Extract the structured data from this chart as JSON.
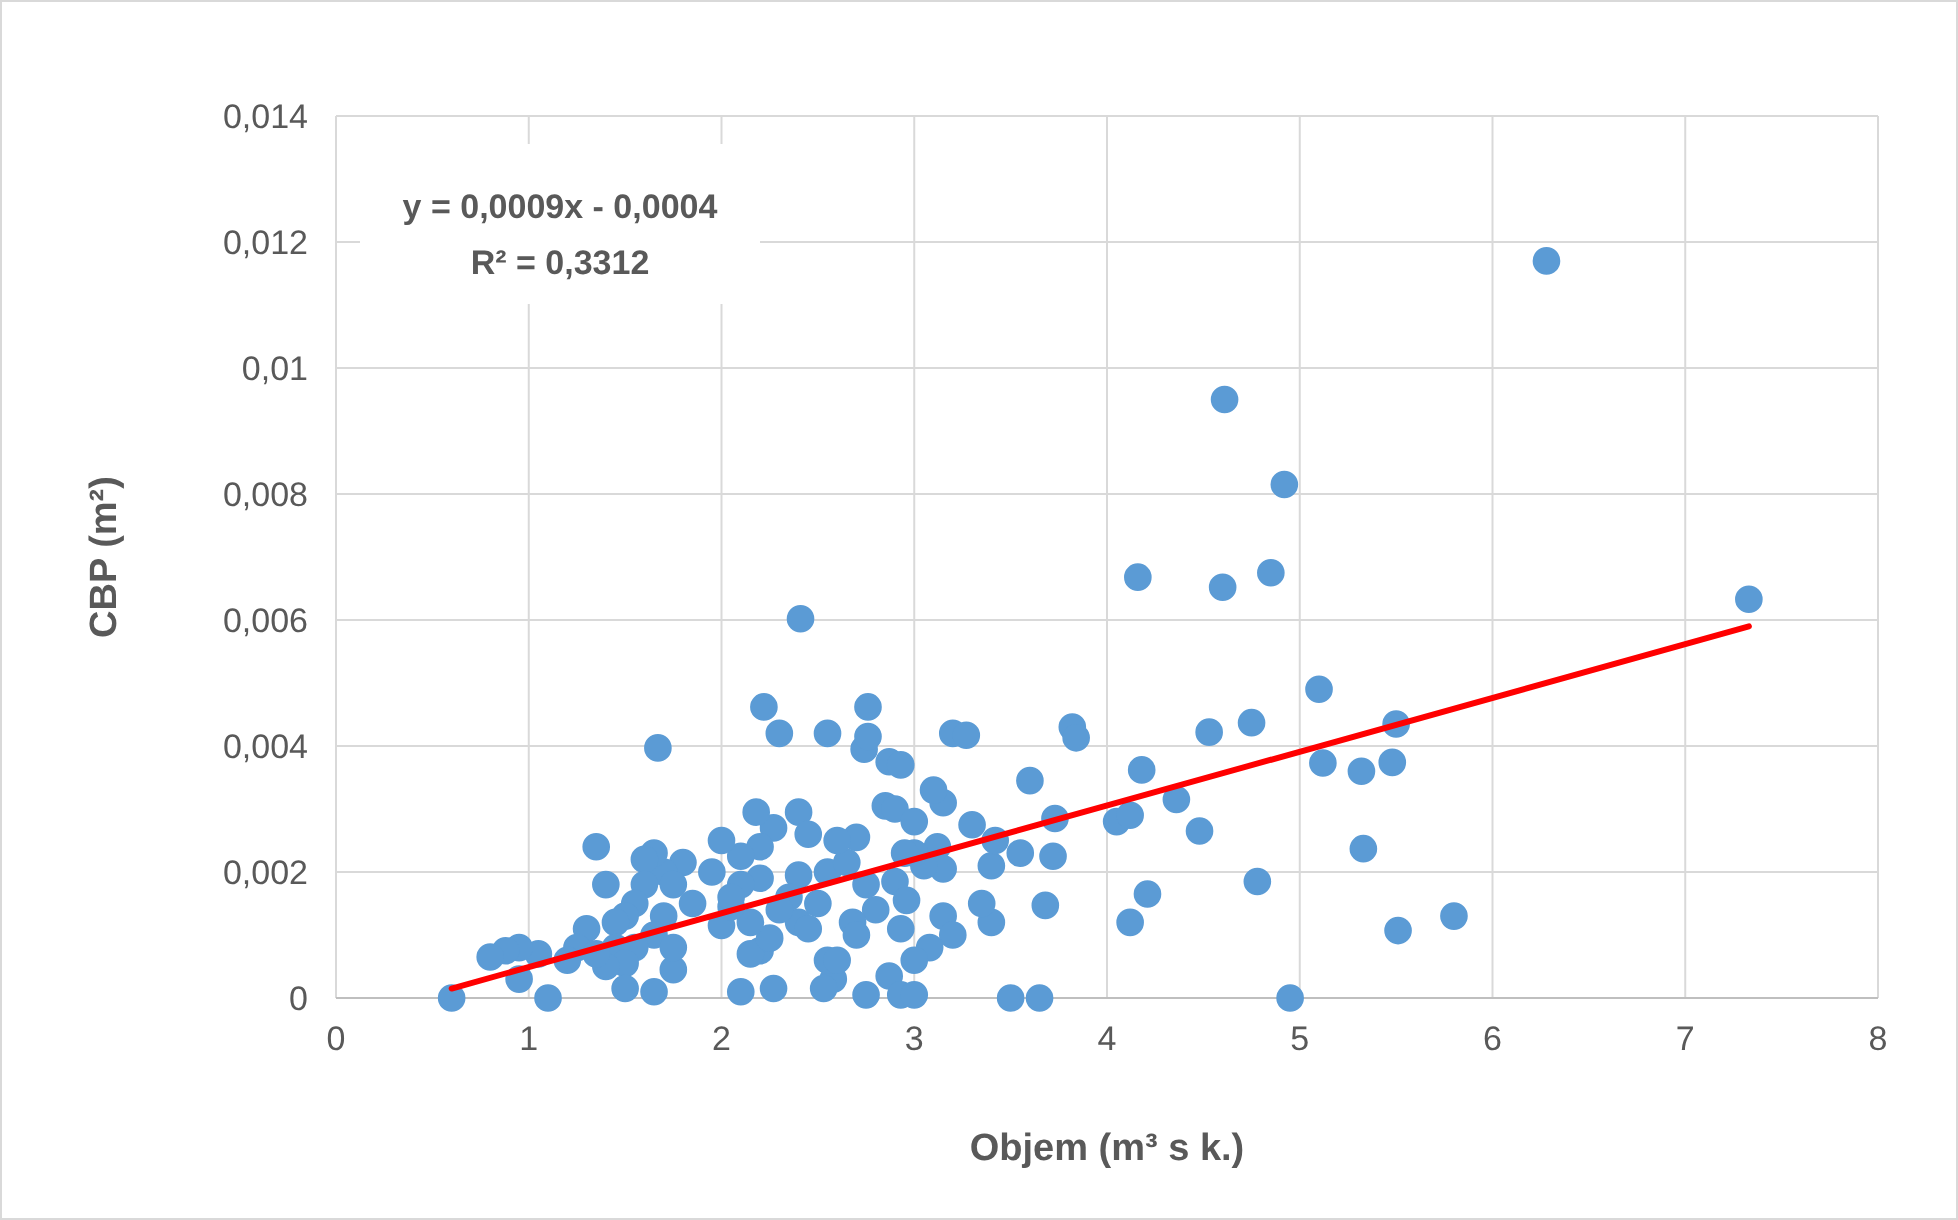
{
  "chart_data": {
    "type": "scatter",
    "xlabel": "Objem (m³ s k.)",
    "ylabel": "CBP (m²)",
    "annotations": [
      "y = 0,0009x - 0,0004",
      "R² = 0,3312"
    ],
    "xlim": [
      0,
      8
    ],
    "xticks": [
      0,
      1,
      2,
      3,
      4,
      5,
      6,
      7,
      8
    ],
    "ylim": [
      0,
      0.014
    ],
    "yticks": [
      0,
      {
        "value": 0.002,
        "label": "0,002"
      },
      {
        "value": 0.004,
        "label": "0,004"
      },
      {
        "value": 0.006,
        "label": "0,006"
      },
      {
        "value": 0.008,
        "label": "0,008"
      },
      {
        "value": 0.01,
        "label": "0,01"
      },
      {
        "value": 0.012,
        "label": "0,012"
      },
      {
        "value": 0.014,
        "label": "0,014"
      }
    ],
    "grid": true,
    "marker": "circle",
    "series": [
      {
        "color": "#5b9bd5",
        "x": [
          6.28,
          4.61,
          4.92,
          4.16,
          4.6,
          4.85,
          7.33,
          2.41,
          1.67,
          5.1,
          5.5,
          4.75,
          4.53,
          3.82,
          3.84,
          4.18,
          5.12,
          5.32,
          5.48,
          4.36,
          4.48,
          4.05,
          4.12,
          5.33,
          4.78,
          4.21,
          4.12,
          5.51,
          5.8,
          4.95,
          3.65,
          3.5,
          3.73,
          3.6,
          3.72,
          3.68,
          3.55,
          3.4,
          3.4,
          3.42,
          3.3,
          3.2,
          3.27,
          3.15,
          3.1,
          2.76,
          2.22,
          2.3,
          2.55,
          2.74,
          2.76,
          2.87,
          2.93,
          2.85,
          2.9,
          3.0,
          3.12,
          3.15,
          3.05,
          3.0,
          2.95,
          2.9,
          2.96,
          2.93,
          3.15,
          3.2,
          3.08,
          3.0,
          2.87,
          2.93,
          3.0,
          2.75,
          2.58,
          2.55,
          2.6,
          2.53,
          2.27,
          2.1,
          2.2,
          2.15,
          2.25,
          2.15,
          2.0,
          2.05,
          2.4,
          2.45,
          2.5,
          2.4,
          2.55,
          2.65,
          2.7,
          2.6,
          2.4,
          2.45,
          2.27,
          2.18,
          2.2,
          2.1,
          2.0,
          1.95,
          1.85,
          1.8,
          1.7,
          1.65,
          1.6,
          1.75,
          1.6,
          1.55,
          1.5,
          1.45,
          1.4,
          1.35,
          1.7,
          1.65,
          1.55,
          1.45,
          1.5,
          1.4,
          1.5,
          1.65,
          1.75,
          1.75,
          1.3,
          1.25,
          1.35,
          1.2,
          1.05,
          0.95,
          0.88,
          0.8,
          0.95,
          1.1,
          0.6,
          2.8,
          2.75,
          2.68,
          2.7,
          2.35,
          2.3,
          2.2,
          2.1,
          2.05,
          3.35
        ],
        "values": [
          0.0117,
          0.0095,
          0.00815,
          0.00668,
          0.00652,
          0.00675,
          0.00633,
          0.00602,
          0.00397,
          0.0049,
          0.00435,
          0.00437,
          0.00422,
          0.0043,
          0.00413,
          0.00362,
          0.00373,
          0.0036,
          0.00374,
          0.00315,
          0.00265,
          0.0028,
          0.0029,
          0.00237,
          0.00185,
          0.00165,
          0.0012,
          0.00107,
          0.0013,
          0.0,
          0.0,
          0.0,
          0.00285,
          0.00345,
          0.00225,
          0.00147,
          0.0023,
          0.0021,
          0.0012,
          0.0025,
          0.00275,
          0.0042,
          0.00417,
          0.0031,
          0.0033,
          0.00462,
          0.00462,
          0.0042,
          0.0042,
          0.00395,
          0.00415,
          0.00375,
          0.0037,
          0.00305,
          0.003,
          0.0028,
          0.0024,
          0.00205,
          0.0021,
          0.0023,
          0.0023,
          0.00185,
          0.00155,
          0.0011,
          0.0013,
          0.001,
          0.0008,
          0.0006,
          0.00035,
          5e-05,
          5e-05,
          5e-05,
          0.0003,
          0.0006,
          0.0006,
          0.00015,
          0.00015,
          0.0001,
          0.00075,
          0.0007,
          0.00095,
          0.0012,
          0.00115,
          0.00145,
          0.0012,
          0.0011,
          0.0015,
          0.00195,
          0.002,
          0.00215,
          0.00255,
          0.0025,
          0.00295,
          0.0026,
          0.0027,
          0.00295,
          0.0024,
          0.00225,
          0.0025,
          0.002,
          0.0015,
          0.00215,
          0.002,
          0.0023,
          0.0022,
          0.0018,
          0.0018,
          0.0015,
          0.0013,
          0.0012,
          0.0018,
          0.0024,
          0.0013,
          0.001,
          0.0008,
          0.0008,
          0.00055,
          0.0005,
          0.00015,
          0.0001,
          0.00045,
          0.0008,
          0.0011,
          0.0008,
          0.0007,
          0.0006,
          0.0007,
          0.0008,
          0.00075,
          0.00065,
          0.0003,
          0.0,
          0.0,
          0.0014,
          0.0018,
          0.0012,
          0.001,
          0.0016,
          0.0014,
          0.0019,
          0.0018,
          0.0016,
          0.0015
        ]
      },
      {
        "type": "line",
        "color": "#ff0000",
        "marker": "none",
        "line_style": "solid",
        "x": [
          0.6,
          7.33
        ],
        "values": [
          0.00015,
          0.0059
        ]
      }
    ]
  }
}
